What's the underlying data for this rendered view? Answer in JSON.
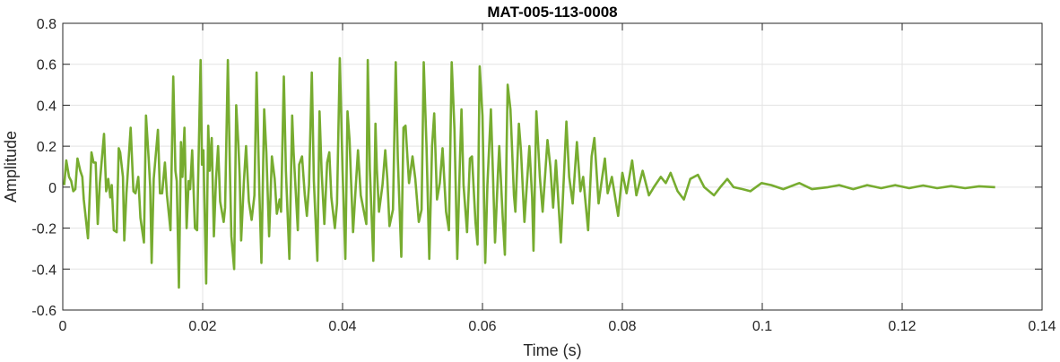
{
  "chart_data": {
    "type": "line",
    "title": "MAT-005-113-0008",
    "xlabel": "Time (s)",
    "ylabel": "Amplitude",
    "xlim": [
      0,
      0.14
    ],
    "ylim": [
      -0.6,
      0.8
    ],
    "xticks": [
      0,
      0.02,
      0.04,
      0.06,
      0.08,
      0.1,
      0.12,
      0.14
    ],
    "xtick_labels": [
      "0",
      "0.02",
      "0.04",
      "0.06",
      "0.08",
      "0.1",
      "0.12",
      "0.14"
    ],
    "yticks": [
      -0.6,
      -0.4,
      -0.2,
      0,
      0.2,
      0.4,
      0.6,
      0.8
    ],
    "ytick_labels": [
      "-0.6",
      "-0.4",
      "-0.2",
      "0",
      "0.2",
      "0.4",
      "0.6",
      "0.8"
    ],
    "grid": true,
    "legend": "none",
    "line_color": "#77AC30",
    "series": [
      {
        "points": [
          [
            0.0002,
            0.01
          ],
          [
            0.0005,
            0.13
          ],
          [
            0.0009,
            0.05
          ],
          [
            0.0012,
            0.03
          ],
          [
            0.0015,
            -0.02
          ],
          [
            0.0018,
            -0.01
          ],
          [
            0.0021,
            0.14
          ],
          [
            0.0025,
            0.08
          ],
          [
            0.0028,
            0.05
          ],
          [
            0.003,
            -0.06
          ],
          [
            0.0036,
            -0.25
          ],
          [
            0.0041,
            0.17
          ],
          [
            0.0044,
            0.12
          ],
          [
            0.0047,
            0.12
          ],
          [
            0.005,
            -0.18
          ],
          [
            0.0053,
            0.02
          ],
          [
            0.0059,
            0.26
          ],
          [
            0.0062,
            -0.02
          ],
          [
            0.0065,
            0.04
          ],
          [
            0.0068,
            -0.05
          ],
          [
            0.007,
            0.01
          ],
          [
            0.0073,
            -0.21
          ],
          [
            0.0077,
            -0.22
          ],
          [
            0.008,
            0.19
          ],
          [
            0.0082,
            0.17
          ],
          [
            0.0086,
            0.05
          ],
          [
            0.0088,
            -0.26
          ],
          [
            0.0091,
            -0.03
          ],
          [
            0.0097,
            0.29
          ],
          [
            0.0101,
            -0.02
          ],
          [
            0.0104,
            -0.03
          ],
          [
            0.0108,
            0.05
          ],
          [
            0.0111,
            -0.15
          ],
          [
            0.0116,
            -0.27
          ],
          [
            0.0119,
            0.35
          ],
          [
            0.0123,
            0.13
          ],
          [
            0.0125,
            0.0
          ],
          [
            0.0127,
            -0.37
          ],
          [
            0.013,
            0.04
          ],
          [
            0.0136,
            0.28
          ],
          [
            0.0139,
            -0.03
          ],
          [
            0.0142,
            -0.03
          ],
          [
            0.0146,
            0.12
          ],
          [
            0.0149,
            -0.04
          ],
          [
            0.0154,
            -0.21
          ],
          [
            0.0158,
            0.54
          ],
          [
            0.0161,
            0.08
          ],
          [
            0.0163,
            0.03
          ],
          [
            0.0166,
            -0.49
          ],
          [
            0.0169,
            0.22
          ],
          [
            0.0171,
            0.05
          ],
          [
            0.0174,
            0.29
          ],
          [
            0.0177,
            -0.2
          ],
          [
            0.018,
            0.03
          ],
          [
            0.0182,
            -0.01
          ],
          [
            0.0185,
            0.18
          ],
          [
            0.0189,
            -0.2
          ],
          [
            0.0192,
            -0.21
          ],
          [
            0.0197,
            0.62
          ],
          [
            0.0199,
            0.11
          ],
          [
            0.0201,
            0.18
          ],
          [
            0.0205,
            -0.47
          ],
          [
            0.0208,
            0.3
          ],
          [
            0.021,
            0.08
          ],
          [
            0.0213,
            0.24
          ],
          [
            0.0216,
            -0.24
          ],
          [
            0.0219,
            0.03
          ],
          [
            0.0222,
            0.2
          ],
          [
            0.0225,
            -0.07
          ],
          [
            0.023,
            -0.17
          ],
          [
            0.0232,
            -0.1
          ],
          [
            0.0236,
            0.62
          ],
          [
            0.0239,
            0.08
          ],
          [
            0.0241,
            -0.24
          ],
          [
            0.0245,
            -0.4
          ],
          [
            0.0248,
            0.4
          ],
          [
            0.0251,
            0.21
          ],
          [
            0.0253,
            0.05
          ],
          [
            0.0255,
            -0.26
          ],
          [
            0.0259,
            0.03
          ],
          [
            0.0262,
            0.2
          ],
          [
            0.0266,
            -0.07
          ],
          [
            0.027,
            -0.16
          ],
          [
            0.0274,
            -0.04
          ],
          [
            0.0277,
            0.56
          ],
          [
            0.0281,
            -0.02
          ],
          [
            0.0284,
            -0.37
          ],
          [
            0.0288,
            0.38
          ],
          [
            0.0291,
            0.17
          ],
          [
            0.0295,
            -0.24
          ],
          [
            0.0299,
            0.15
          ],
          [
            0.0303,
            0.04
          ],
          [
            0.0306,
            -0.13
          ],
          [
            0.031,
            -0.06
          ],
          [
            0.0312,
            -0.12
          ],
          [
            0.0316,
            0.54
          ],
          [
            0.0319,
            0.08
          ],
          [
            0.0324,
            -0.35
          ],
          [
            0.0328,
            0.35
          ],
          [
            0.033,
            0.17
          ],
          [
            0.0336,
            -0.21
          ],
          [
            0.0338,
            0.11
          ],
          [
            0.0342,
            0.15
          ],
          [
            0.0346,
            -0.04
          ],
          [
            0.0349,
            -0.14
          ],
          [
            0.0352,
            0.01
          ],
          [
            0.0356,
            0.56
          ],
          [
            0.0359,
            0.03
          ],
          [
            0.0364,
            -0.36
          ],
          [
            0.0367,
            0.37
          ],
          [
            0.037,
            0.08
          ],
          [
            0.0374,
            -0.18
          ],
          [
            0.0378,
            0.12
          ],
          [
            0.0381,
            0.17
          ],
          [
            0.0384,
            -0.05
          ],
          [
            0.0389,
            -0.2
          ],
          [
            0.0392,
            -0.08
          ],
          [
            0.0396,
            0.63
          ],
          [
            0.04,
            0.08
          ],
          [
            0.0404,
            -0.35
          ],
          [
            0.0407,
            0.37
          ],
          [
            0.041,
            0.23
          ],
          [
            0.0412,
            0.04
          ],
          [
            0.0415,
            -0.22
          ],
          [
            0.0419,
            0.01
          ],
          [
            0.0422,
            0.18
          ],
          [
            0.0426,
            -0.04
          ],
          [
            0.043,
            -0.11
          ],
          [
            0.0434,
            -0.18
          ],
          [
            0.0436,
            0.62
          ],
          [
            0.0439,
            0.09
          ],
          [
            0.0444,
            -0.36
          ],
          [
            0.0447,
            0.31
          ],
          [
            0.0449,
            0.09
          ],
          [
            0.0452,
            -0.12
          ],
          [
            0.0457,
            0.01
          ],
          [
            0.0461,
            0.18
          ],
          [
            0.0464,
            0.04
          ],
          [
            0.0467,
            -0.19
          ],
          [
            0.0472,
            -0.11
          ],
          [
            0.0476,
            0.61
          ],
          [
            0.0479,
            0.14
          ],
          [
            0.0484,
            -0.34
          ],
          [
            0.0487,
            0.29
          ],
          [
            0.049,
            0.3
          ],
          [
            0.0495,
            0.02
          ],
          [
            0.05,
            0.15
          ],
          [
            0.0504,
            0.04
          ],
          [
            0.0509,
            -0.17
          ],
          [
            0.0513,
            -0.11
          ],
          [
            0.0516,
            0.61
          ],
          [
            0.052,
            0.2
          ],
          [
            0.0524,
            -0.35
          ],
          [
            0.0528,
            0.2
          ],
          [
            0.0531,
            0.36
          ],
          [
            0.0535,
            -0.06
          ],
          [
            0.0539,
            0.02
          ],
          [
            0.0543,
            0.19
          ],
          [
            0.0548,
            -0.12
          ],
          [
            0.0552,
            -0.21
          ],
          [
            0.0556,
            0.61
          ],
          [
            0.056,
            0.28
          ],
          [
            0.0564,
            -0.35
          ],
          [
            0.0568,
            0.15
          ],
          [
            0.057,
            0.38
          ],
          [
            0.0573,
            0.01
          ],
          [
            0.0578,
            -0.22
          ],
          [
            0.0582,
            0.14
          ],
          [
            0.0585,
            0.15
          ],
          [
            0.059,
            -0.17
          ],
          [
            0.0593,
            -0.28
          ],
          [
            0.0596,
            0.59
          ],
          [
            0.06,
            0.35
          ],
          [
            0.0604,
            -0.37
          ],
          [
            0.0607,
            0.01
          ],
          [
            0.0612,
            0.38
          ],
          [
            0.0615,
            0.06
          ],
          [
            0.0618,
            -0.27
          ],
          [
            0.0622,
            0.06
          ],
          [
            0.0624,
            0.2
          ],
          [
            0.0629,
            -0.15
          ],
          [
            0.0632,
            -0.33
          ],
          [
            0.0636,
            0.5
          ],
          [
            0.064,
            0.38
          ],
          [
            0.0645,
            -0.04
          ],
          [
            0.0647,
            -0.12
          ],
          [
            0.0652,
            0.31
          ],
          [
            0.0655,
            0.18
          ],
          [
            0.066,
            -0.17
          ],
          [
            0.0667,
            0.2
          ],
          [
            0.0671,
            -0.05
          ],
          [
            0.0673,
            -0.31
          ],
          [
            0.0677,
            0.37
          ],
          [
            0.0682,
            0.05
          ],
          [
            0.0686,
            -0.12
          ],
          [
            0.0693,
            0.23
          ],
          [
            0.0697,
            0.1
          ],
          [
            0.0701,
            -0.1
          ],
          [
            0.0705,
            0.13
          ],
          [
            0.0712,
            -0.27
          ],
          [
            0.072,
            0.32
          ],
          [
            0.0724,
            0.05
          ],
          [
            0.0729,
            -0.08
          ],
          [
            0.0735,
            0.22
          ],
          [
            0.074,
            -0.02
          ],
          [
            0.0744,
            0.05
          ],
          [
            0.0751,
            -0.21
          ],
          [
            0.0756,
            0.15
          ],
          [
            0.076,
            0.24
          ],
          [
            0.0766,
            -0.08
          ],
          [
            0.077,
            0.02
          ],
          [
            0.0775,
            0.14
          ],
          [
            0.0779,
            -0.03
          ],
          [
            0.0785,
            0.05
          ],
          [
            0.0794,
            -0.14
          ],
          [
            0.08,
            0.07
          ],
          [
            0.0806,
            -0.03
          ],
          [
            0.0814,
            0.13
          ],
          [
            0.082,
            -0.04
          ],
          [
            0.0829,
            0.08
          ],
          [
            0.0838,
            -0.04
          ],
          [
            0.0845,
            0.0
          ],
          [
            0.0855,
            0.05
          ],
          [
            0.0862,
            0.02
          ],
          [
            0.0869,
            0.07
          ],
          [
            0.0879,
            -0.02
          ],
          [
            0.0888,
            -0.06
          ],
          [
            0.0897,
            0.04
          ],
          [
            0.0908,
            0.06
          ],
          [
            0.0917,
            0.0
          ],
          [
            0.0931,
            -0.04
          ],
          [
            0.094,
            0.0
          ],
          [
            0.095,
            0.04
          ],
          [
            0.0959,
            0.0
          ],
          [
            0.0972,
            -0.01
          ],
          [
            0.0983,
            -0.02
          ],
          [
            0.0999,
            0.02
          ],
          [
            0.1013,
            0.01
          ],
          [
            0.103,
            -0.01
          ],
          [
            0.1053,
            0.02
          ],
          [
            0.1071,
            -0.01
          ],
          [
            0.1094,
            0.0
          ],
          [
            0.111,
            0.01
          ],
          [
            0.113,
            -0.01
          ],
          [
            0.115,
            0.01
          ],
          [
            0.117,
            -0.005
          ],
          [
            0.119,
            0.01
          ],
          [
            0.121,
            -0.005
          ],
          [
            0.123,
            0.008
          ],
          [
            0.125,
            -0.005
          ],
          [
            0.127,
            0.005
          ],
          [
            0.129,
            -0.005
          ],
          [
            0.131,
            0.004
          ],
          [
            0.1333,
            0.0
          ]
        ]
      }
    ]
  }
}
